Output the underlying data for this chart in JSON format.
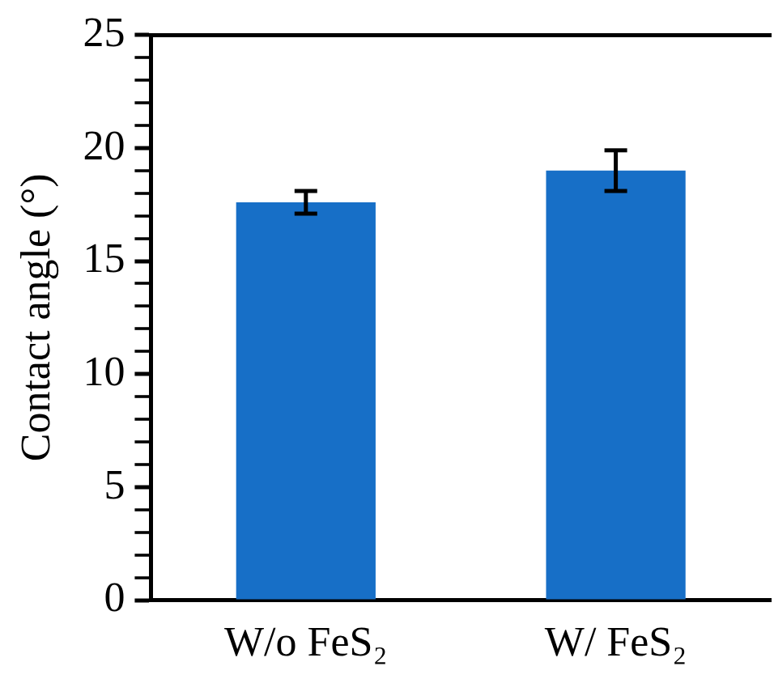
{
  "chart_data": {
    "type": "bar",
    "ylabel": "Contact angle (°)",
    "categories": [
      "W/o FeS₂",
      "W/ FeS₂"
    ],
    "values": [
      17.6,
      19.0
    ],
    "errors": [
      0.5,
      0.9
    ],
    "color": "#176fc7",
    "ylim": [
      0,
      25
    ],
    "yticks": [
      0,
      {
        "value": 1,
        "label": null
      },
      {
        "value": 2,
        "label": null
      },
      {
        "value": 3,
        "label": null
      },
      {
        "value": 4,
        "label": null
      },
      5,
      {
        "value": 6,
        "label": null
      },
      {
        "value": 7,
        "label": null
      },
      {
        "value": 8,
        "label": null
      },
      {
        "value": 9,
        "label": null
      },
      10,
      {
        "value": 11,
        "label": null
      },
      {
        "value": 12,
        "label": null
      },
      {
        "value": 13,
        "label": null
      },
      {
        "value": 14,
        "label": null
      },
      15,
      {
        "value": 16,
        "label": null
      },
      {
        "value": 17,
        "label": null
      },
      {
        "value": 18,
        "label": null
      },
      {
        "value": 19,
        "label": null
      },
      20,
      {
        "value": 21,
        "label": null
      },
      {
        "value": 22,
        "label": null
      },
      {
        "value": 23,
        "label": null
      },
      {
        "value": 24,
        "label": null
      },
      25
    ],
    "grid": false,
    "legend": false
  }
}
